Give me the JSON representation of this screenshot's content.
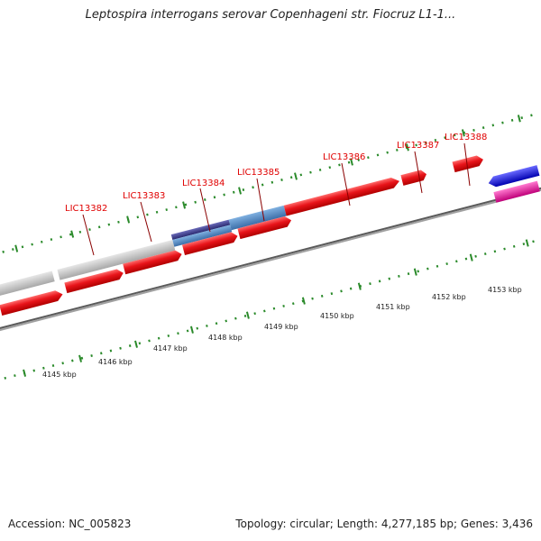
{
  "title": "Leptospira interrogans serovar Copenhageni str. Fiocruz L1-1...",
  "footer": {
    "accession": "Accession: NC_005823",
    "summary": "Topology: circular; Length: 4,277,185 bp; Genes: 3,436"
  },
  "gene_labels": [
    "LIC13382",
    "LIC13383",
    "LIC13384",
    "LIC13385",
    "LIC13386",
    "LIC13387",
    "LIC13388"
  ],
  "kbp_labels": [
    "4145 kbp",
    "4146 kbp",
    "4147 kbp",
    "4148 kbp",
    "4149 kbp",
    "4150 kbp",
    "4151 kbp",
    "4152 kbp",
    "4153 kbp"
  ],
  "colors": {
    "gene_label": "#e00000",
    "tick": "#2a8a2a",
    "backbone": "#7a7a7a",
    "cds": "#e8141a",
    "grey_feature": "#c0c0c0",
    "blue_feature": "#4f86c0",
    "dark_blue_feature": "#3a3a8a",
    "blue_arrow": "#1a1ae0",
    "pink_feature": "#e61aa0"
  }
}
